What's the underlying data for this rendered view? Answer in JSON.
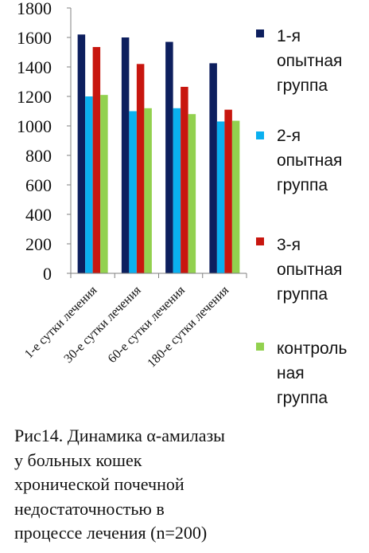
{
  "chart_data": {
    "type": "bar",
    "categories": [
      "1-е сутки лечения",
      "30-е сутки лечения",
      "60-е сутки лечения",
      "180-е сутки лечения"
    ],
    "series": [
      {
        "name": "1-я опытная группа",
        "color": "#0d1f5e",
        "values": [
          1620,
          1600,
          1570,
          1425
        ]
      },
      {
        "name": " 2-я опытная группа",
        "color": "#0ab0f0",
        "values": [
          1200,
          1100,
          1120,
          1030
        ]
      },
      {
        "name": "3-я опытная группа",
        "color": "#c8160f",
        "values": [
          1535,
          1420,
          1265,
          1110
        ]
      },
      {
        "name": "контрольная группа",
        "color": "#92d14f",
        "values": [
          1210,
          1120,
          1080,
          1035
        ]
      }
    ],
    "yticks": [
      0,
      200,
      400,
      600,
      800,
      1000,
      1200,
      1400,
      1600,
      1800
    ],
    "ylim": [
      0,
      1800
    ],
    "grid": false,
    "legend_position": "right"
  },
  "legend": {
    "items": [
      {
        "label": "1-я\nопытная\nгруппа",
        "color": "#0d1f5e"
      },
      {
        "label": " 2-я\nопытная\nгруппа",
        "color": "#0ab0f0"
      },
      {
        "label": "3-я\nопытная\nгруппа",
        "color": "#c8160f"
      },
      {
        "label": "контроль\nная\nгруппа",
        "color": "#92d14f"
      }
    ]
  },
  "caption": "Рис14. Динамика α-амилазы\nу больных кошек\nхронической почечной\nнедостаточностью в\nпроцессе лечения (n=200)"
}
